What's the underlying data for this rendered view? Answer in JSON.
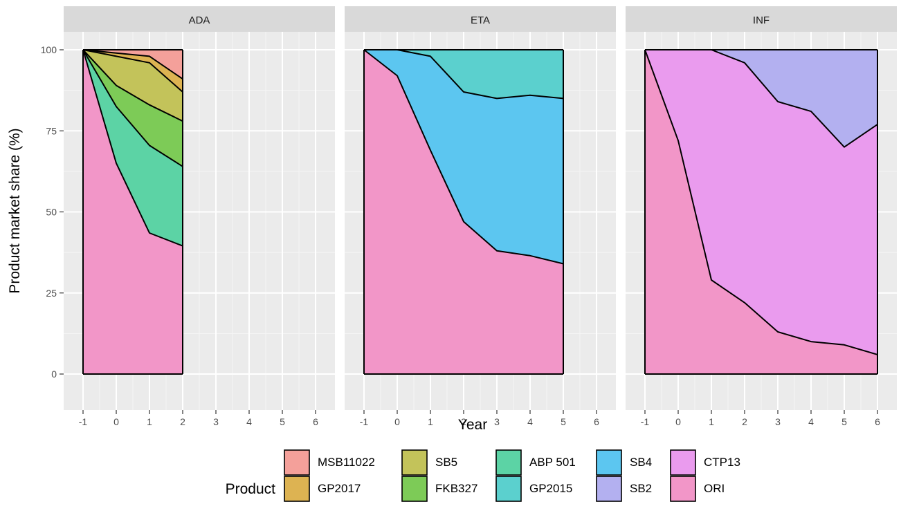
{
  "chart_data": {
    "type": "area",
    "stacked": true,
    "xlabel": "Year",
    "ylabel": "Product market share (%)",
    "ylim": [
      0,
      100
    ],
    "xlim": [
      -1,
      6
    ],
    "x_ticks": [
      -1,
      0,
      1,
      2,
      3,
      4,
      5,
      6
    ],
    "y_ticks": [
      0,
      25,
      50,
      75,
      100
    ],
    "grid": true,
    "legend": {
      "title": "Product",
      "position": "bottom",
      "ncol": 5,
      "entries": [
        "MSB11022",
        "GP2017",
        "SB5",
        "FKB327",
        "ABP 501",
        "GP2015",
        "SB4",
        "SB2",
        "CTP13",
        "ORI"
      ]
    },
    "colors": {
      "MSB11022": "#F4A09A",
      "GP2017": "#DDB352",
      "SB5": "#C3C35A",
      "FKB327": "#7DCB57",
      "ABP 501": "#5CD3A5",
      "GP2015": "#5BD0CE",
      "SB4": "#5CC6F0",
      "SB2": "#B3B0F0",
      "CTP13": "#EA9BEE",
      "ORI": "#F296C8"
    },
    "panels": [
      {
        "title": "ADA",
        "x": [
          -1,
          0,
          1,
          2
        ],
        "series": [
          {
            "name": "ORI",
            "values": [
              100,
              65,
              43.5,
              39.5
            ]
          },
          {
            "name": "ABP 501",
            "values": [
              0,
              17.5,
              27,
              24.5
            ]
          },
          {
            "name": "FKB327",
            "values": [
              0,
              6.5,
              12.5,
              14
            ]
          },
          {
            "name": "SB5",
            "values": [
              0,
              9,
              13,
              9
            ]
          },
          {
            "name": "GP2017",
            "values": [
              0,
              1,
              2,
              4
            ]
          },
          {
            "name": "MSB11022",
            "values": [
              0,
              1,
              2,
              9
            ]
          }
        ]
      },
      {
        "title": "ETA",
        "x": [
          -1,
          0,
          1,
          2,
          3,
          4,
          5
        ],
        "series": [
          {
            "name": "ORI",
            "values": [
              100,
              92,
              69,
              47,
              38,
              36.5,
              34
            ]
          },
          {
            "name": "SB4",
            "values": [
              0,
              8,
              29,
              40,
              47,
              49.5,
              51
            ]
          },
          {
            "name": "GP2015",
            "values": [
              0,
              0,
              2,
              13,
              15,
              14,
              15
            ]
          }
        ]
      },
      {
        "title": "INF",
        "x": [
          -1,
          0,
          1,
          2,
          3,
          4,
          5,
          6
        ],
        "series": [
          {
            "name": "ORI",
            "values": [
              100,
              72,
              29,
              22,
              13,
              10,
              9,
              6
            ]
          },
          {
            "name": "CTP13",
            "values": [
              0,
              28,
              71,
              74,
              71,
              71,
              61,
              71
            ]
          },
          {
            "name": "SB2",
            "values": [
              0,
              0,
              0,
              4,
              16,
              19,
              30,
              23
            ]
          }
        ]
      }
    ]
  }
}
